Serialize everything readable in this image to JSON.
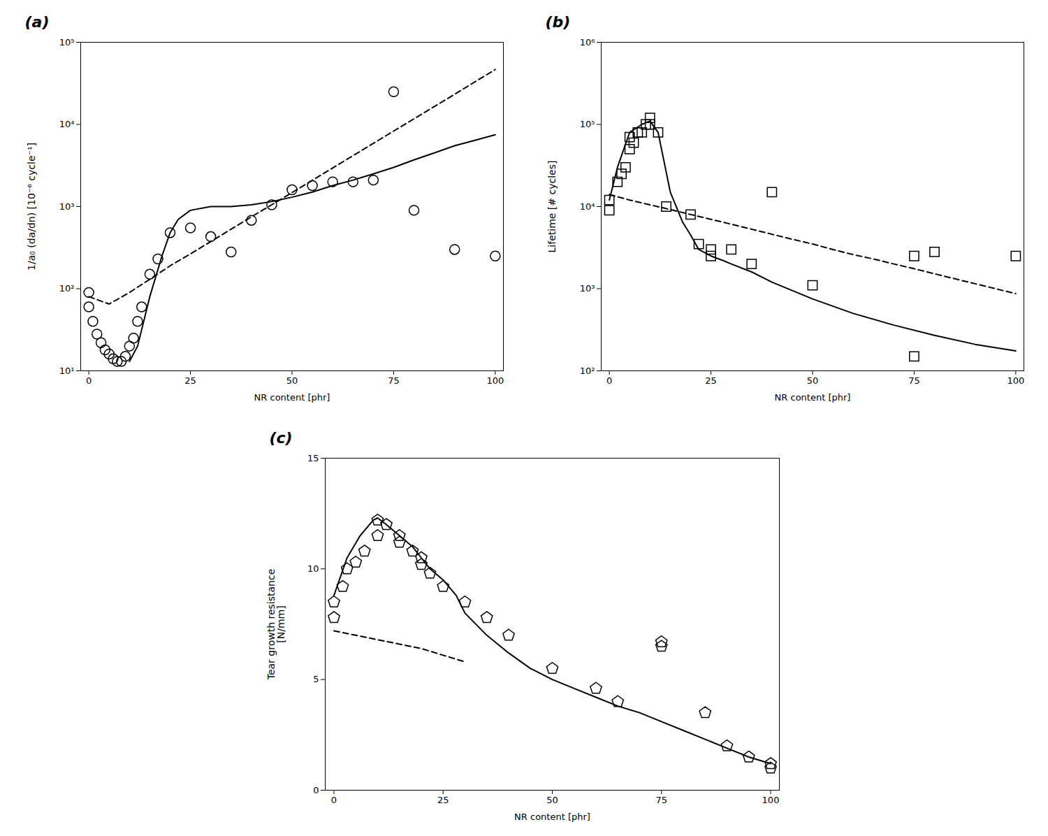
{
  "chart_data": [
    {
      "type": "scatter",
      "annotations": [
        {
          "text": "(a)"
        }
      ],
      "xlabel": "NR content [phr]",
      "ylabel": "1/a₀ (da/dn) [10⁻⁶ cycle⁻¹]",
      "log": "y",
      "grid": false,
      "xlim": [
        -2,
        102
      ],
      "xticks": [
        0,
        25,
        50,
        75,
        100
      ],
      "ylim": [
        10,
        100000
      ],
      "yticks": [
        {
          "value": 10,
          "label": "10¹"
        },
        {
          "value": 100,
          "label": "10²"
        },
        {
          "value": 1000,
          "label": "10³"
        },
        {
          "value": 10000,
          "label": "10⁴"
        },
        {
          "value": 100000,
          "label": "10⁵"
        }
      ],
      "series": [
        {
          "type": "scatter",
          "marker": "circle",
          "color": "black",
          "x": [
            0,
            0,
            1,
            2,
            3,
            4,
            5,
            6,
            7,
            8,
            9,
            10,
            11,
            12,
            13,
            15,
            17,
            20,
            25,
            30,
            35,
            40,
            45,
            50,
            55,
            60,
            65,
            70,
            75,
            80,
            90,
            100
          ],
          "values": [
            90,
            60,
            40,
            28,
            22,
            18,
            16,
            14,
            13,
            13,
            15,
            20,
            25,
            40,
            60,
            150,
            230,
            480,
            550,
            430,
            280,
            680,
            1050,
            1600,
            1800,
            2000,
            2000,
            2100,
            25000,
            900,
            300,
            250
          ]
        },
        {
          "type": "line",
          "line_style": "solid",
          "color": "black",
          "x": [
            10,
            12,
            15,
            18,
            20,
            22,
            25,
            30,
            35,
            40,
            45,
            50,
            55,
            60,
            65,
            70,
            75,
            80,
            85,
            90,
            95,
            100
          ],
          "values": [
            13,
            20,
            80,
            250,
            480,
            700,
            900,
            1000,
            1000,
            1050,
            1150,
            1300,
            1500,
            1800,
            2100,
            2500,
            3000,
            3700,
            4500,
            5500,
            6400,
            7500
          ]
        },
        {
          "type": "line",
          "line_style": "dashed",
          "color": "black",
          "x": [
            0,
            5,
            10,
            15,
            20,
            25,
            30,
            35,
            40,
            45,
            50,
            55,
            60,
            65,
            70,
            75,
            80,
            85,
            90,
            95,
            100
          ],
          "values": [
            80,
            65,
            90,
            130,
            190,
            265,
            375,
            530,
            750,
            1050,
            1480,
            2090,
            2950,
            4160,
            5880,
            8300,
            11700,
            16500,
            23300,
            33000,
            46600
          ]
        }
      ]
    },
    {
      "type": "scatter",
      "annotations": [
        {
          "text": "(b)"
        }
      ],
      "xlabel": "NR content [phr]",
      "ylabel": "Lifetime [# cycles]",
      "log": "y",
      "grid": false,
      "xlim": [
        -2,
        102
      ],
      "xticks": [
        0,
        25,
        50,
        75,
        100
      ],
      "ylim": [
        100,
        1000000
      ],
      "yticks": [
        {
          "value": 100,
          "label": "10²"
        },
        {
          "value": 1000,
          "label": "10³"
        },
        {
          "value": 10000,
          "label": "10⁴"
        },
        {
          "value": 100000,
          "label": "10⁵"
        },
        {
          "value": 1000000,
          "label": "10⁶"
        }
      ],
      "series": [
        {
          "type": "scatter",
          "marker": "square",
          "color": "black",
          "x": [
            0,
            0,
            2,
            3,
            4,
            5,
            5,
            6,
            7,
            8,
            9,
            10,
            10,
            12,
            14,
            20,
            22,
            25,
            25,
            30,
            35,
            40,
            50,
            75,
            75,
            80,
            100
          ],
          "values": [
            9000,
            12000,
            20000,
            25000,
            30000,
            50000,
            70000,
            60000,
            80000,
            80000,
            100000,
            120000,
            100000,
            80000,
            10000,
            8000,
            3500,
            3000,
            2500,
            3000,
            2000,
            15000,
            1100,
            150,
            2500,
            2800,
            2500
          ]
        },
        {
          "type": "line",
          "line_style": "solid",
          "color": "black",
          "x": [
            0,
            2,
            5,
            8,
            10,
            12,
            15,
            18,
            20,
            22,
            25,
            28,
            30,
            35,
            40,
            45,
            50,
            60,
            70,
            80,
            90,
            100
          ],
          "values": [
            12000,
            30000,
            80000,
            100000,
            110000,
            80000,
            15000,
            6500,
            4500,
            3000,
            2500,
            2200,
            2000,
            1600,
            1200,
            950,
            750,
            500,
            360,
            270,
            210,
            175
          ]
        },
        {
          "type": "line",
          "line_style": "dashed",
          "color": "black",
          "x": [
            0,
            5,
            10,
            15,
            20,
            25,
            30,
            35,
            40,
            45,
            50,
            55,
            60,
            65,
            70,
            75,
            80,
            85,
            90,
            95,
            100
          ],
          "values": [
            14000,
            12000,
            10500,
            9200,
            8000,
            7000,
            6100,
            5300,
            4600,
            4000,
            3500,
            3000,
            2600,
            2300,
            2000,
            1750,
            1520,
            1320,
            1150,
            1000,
            870
          ]
        }
      ]
    },
    {
      "type": "scatter",
      "annotations": [
        {
          "text": "(c)"
        }
      ],
      "xlabel": "NR content [phr]",
      "ylabel": "Tear growth resistance\n[N/mm]",
      "grid": false,
      "xlim": [
        -2,
        102
      ],
      "xticks": [
        0,
        25,
        50,
        75,
        100
      ],
      "ylim": [
        0,
        15
      ],
      "yticks": [
        0,
        5,
        10,
        15
      ],
      "series": [
        {
          "type": "scatter",
          "marker": "pentagon",
          "color": "black",
          "x": [
            0,
            0,
            2,
            3,
            5,
            7,
            10,
            10,
            12,
            15,
            15,
            18,
            20,
            20,
            22,
            25,
            30,
            35,
            40,
            50,
            60,
            65,
            75,
            75,
            85,
            90,
            95,
            100,
            100
          ],
          "values": [
            7.8,
            8.5,
            9.2,
            10.0,
            10.3,
            10.8,
            11.5,
            12.2,
            12.0,
            11.5,
            11.2,
            10.8,
            10.5,
            10.2,
            9.8,
            9.2,
            8.5,
            7.8,
            7.0,
            5.5,
            4.6,
            4.0,
            6.7,
            6.5,
            3.5,
            2.0,
            1.5,
            1.2,
            1.0
          ]
        },
        {
          "type": "line",
          "line_style": "solid",
          "color": "black",
          "x": [
            0,
            3,
            6,
            9,
            10,
            12,
            15,
            18,
            20,
            22,
            25,
            28,
            30,
            35,
            40,
            45,
            50,
            55,
            60,
            65,
            70,
            75,
            80,
            85,
            90,
            95,
            100
          ],
          "values": [
            8.8,
            10.5,
            11.5,
            12.2,
            12.3,
            12.0,
            11.5,
            11.0,
            10.5,
            10.0,
            9.5,
            8.8,
            8.0,
            7.0,
            6.2,
            5.5,
            5.0,
            4.6,
            4.2,
            3.8,
            3.5,
            3.1,
            2.7,
            2.3,
            1.9,
            1.5,
            1.2
          ]
        },
        {
          "type": "line",
          "line_style": "dashed",
          "color": "black",
          "x": [
            0,
            5,
            10,
            15,
            20,
            25,
            30
          ],
          "values": [
            7.2,
            7.0,
            6.8,
            6.6,
            6.4,
            6.1,
            5.8
          ]
        }
      ]
    }
  ]
}
